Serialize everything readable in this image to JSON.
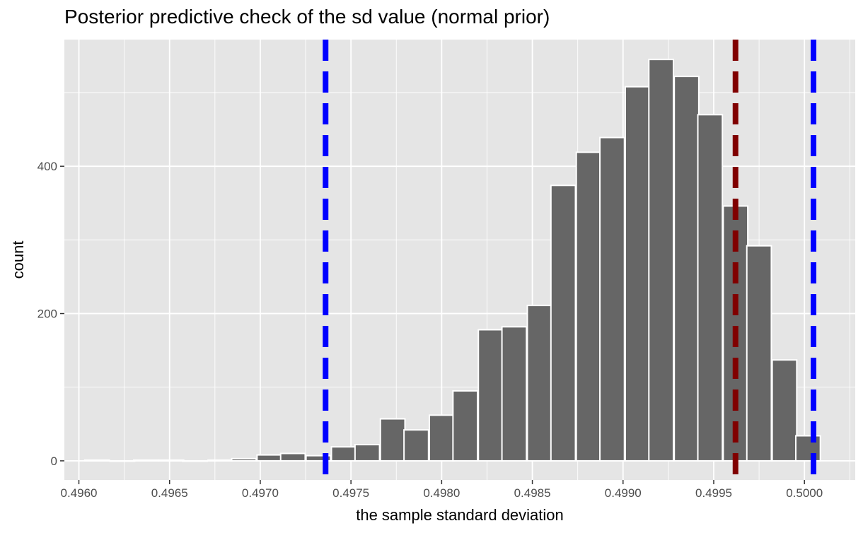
{
  "chart_data": {
    "type": "bar",
    "title": "Posterior predictive check of the sd value (normal prior)",
    "xlabel": "the sample standard deviation",
    "ylabel": "count",
    "xlim": [
      0.49592,
      0.50028
    ],
    "ylim": [
      -26,
      572
    ],
    "x_ticks": [
      {
        "value": 0.496,
        "label": "0.4960"
      },
      {
        "value": 0.4965,
        "label": "0.4965"
      },
      {
        "value": 0.497,
        "label": "0.4970"
      },
      {
        "value": 0.4975,
        "label": "0.4975"
      },
      {
        "value": 0.498,
        "label": "0.4980"
      },
      {
        "value": 0.4985,
        "label": "0.4985"
      },
      {
        "value": 0.499,
        "label": "0.4990"
      },
      {
        "value": 0.4995,
        "label": "0.4995"
      },
      {
        "value": 0.5,
        "label": "0.5000"
      }
    ],
    "y_ticks": [
      {
        "value": 0,
        "label": "0"
      },
      {
        "value": 200,
        "label": "200"
      },
      {
        "value": 400,
        "label": "400"
      }
    ],
    "bin_width": 0.0001353,
    "bins": [
      {
        "x": 0.4961,
        "count": 1
      },
      {
        "x": 0.49624,
        "count": 0
      },
      {
        "x": 0.49637,
        "count": 1
      },
      {
        "x": 0.49651,
        "count": 1
      },
      {
        "x": 0.49664,
        "count": 0
      },
      {
        "x": 0.49678,
        "count": 1
      },
      {
        "x": 0.49691,
        "count": 3
      },
      {
        "x": 0.49705,
        "count": 8
      },
      {
        "x": 0.49718,
        "count": 10
      },
      {
        "x": 0.49732,
        "count": 7
      },
      {
        "x": 0.49746,
        "count": 19
      },
      {
        "x": 0.49759,
        "count": 22
      },
      {
        "x": 0.49773,
        "count": 57
      },
      {
        "x": 0.49786,
        "count": 42
      },
      {
        "x": 0.498,
        "count": 62
      },
      {
        "x": 0.49813,
        "count": 95
      },
      {
        "x": 0.49827,
        "count": 178
      },
      {
        "x": 0.4984,
        "count": 182
      },
      {
        "x": 0.49854,
        "count": 211
      },
      {
        "x": 0.49867,
        "count": 374
      },
      {
        "x": 0.49881,
        "count": 419
      },
      {
        "x": 0.49894,
        "count": 439
      },
      {
        "x": 0.49908,
        "count": 508
      },
      {
        "x": 0.49921,
        "count": 545
      },
      {
        "x": 0.49935,
        "count": 522
      },
      {
        "x": 0.49948,
        "count": 470
      },
      {
        "x": 0.49962,
        "count": 346
      },
      {
        "x": 0.49975,
        "count": 292
      },
      {
        "x": 0.49989,
        "count": 137
      },
      {
        "x": 0.50002,
        "count": 34
      }
    ],
    "vlines": [
      {
        "x": 0.49736,
        "color": "#0000ff"
      },
      {
        "x": 0.49962,
        "color": "#800000"
      },
      {
        "x": 0.50005,
        "color": "#0000ff"
      }
    ],
    "colors": {
      "panel_bg": "#e5e5e5",
      "grid": "#ffffff",
      "bar_fill": "#666666",
      "bar_stroke": "#ffffff",
      "tick_text": "#4d4d4d"
    }
  }
}
